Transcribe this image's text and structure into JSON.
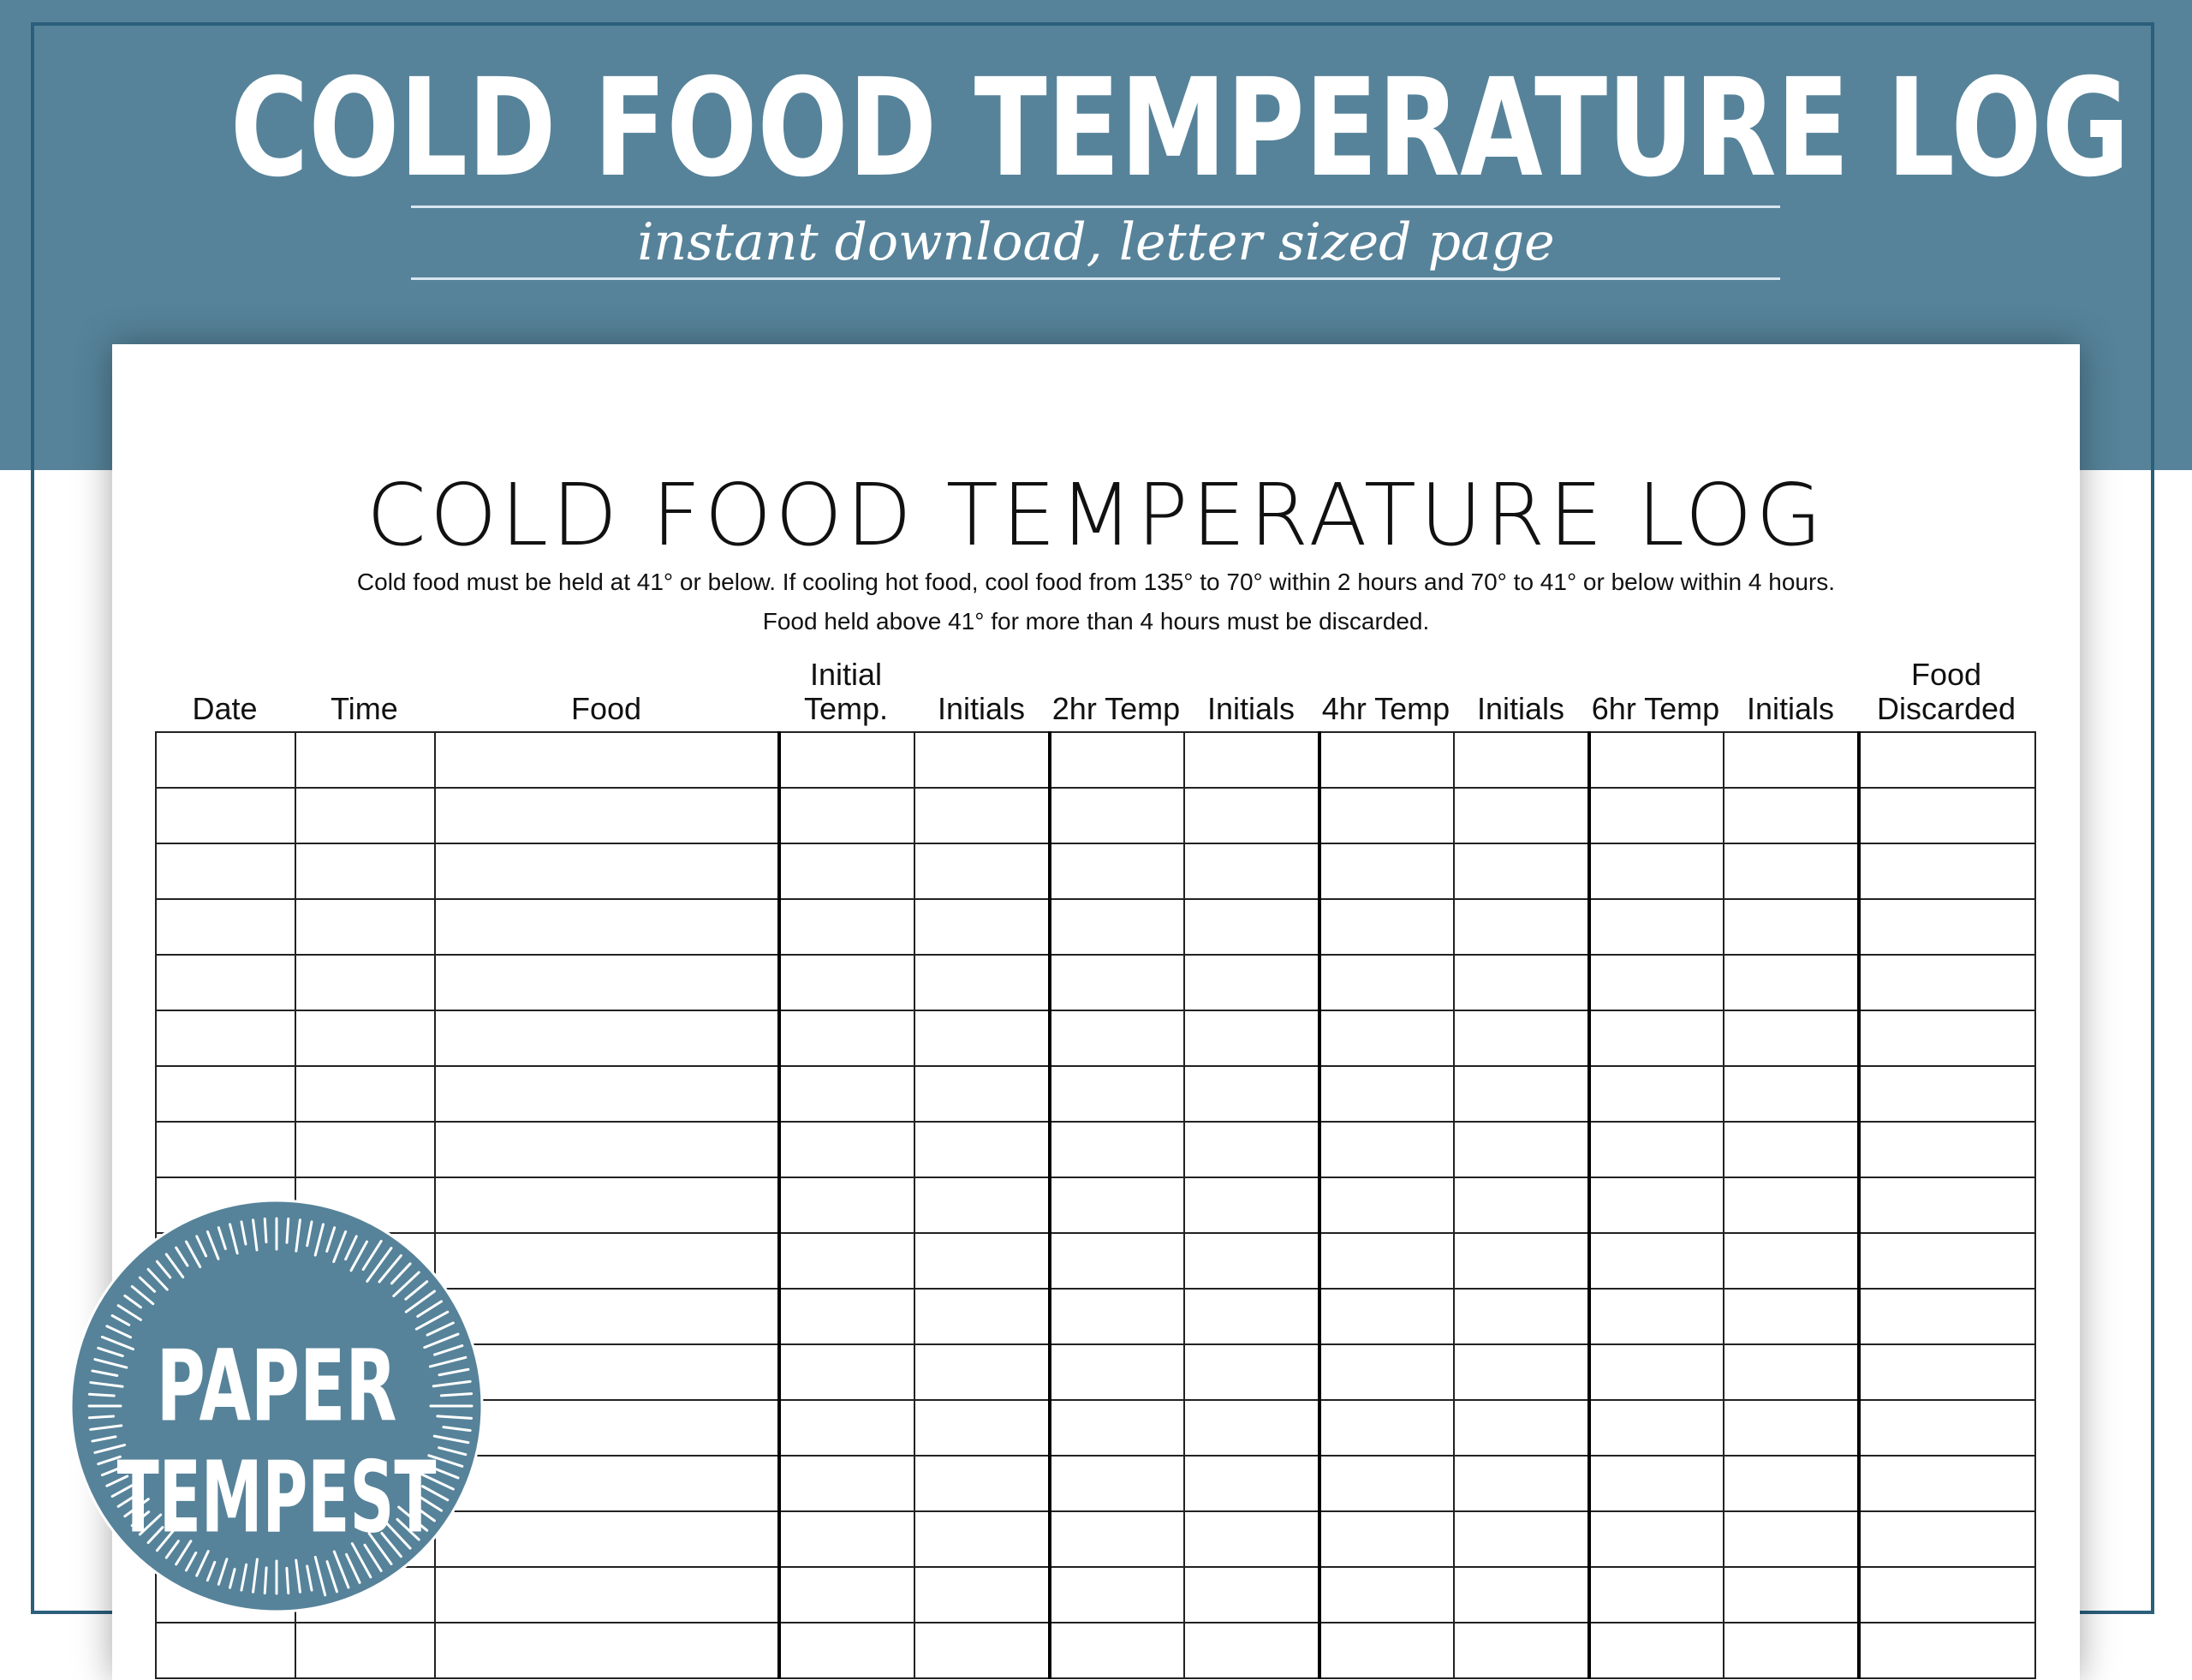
{
  "banner": {
    "title": "COLD FOOD TEMPERATURE LOG",
    "subtitle": "instant download, letter sized page"
  },
  "document": {
    "title": "COLD FOOD TEMPERATURE LOG",
    "instructions_line1": "Cold food must be held at 41° or below. If cooling hot food, cool food from 135° to 70° within 2 hours and 70° to 41° or below within 4 hours.",
    "instructions_line2": "Food held above 41° for more than 4 hours must be discarded.",
    "columns": [
      "Date",
      "Time",
      "Food",
      "Initial Temp.",
      "Initials",
      "2hr Temp",
      "Initials",
      "4hr Temp",
      "Initials",
      "6hr Temp",
      "Initials",
      "Food Discarded"
    ]
  },
  "badge": {
    "line1": "PAPER",
    "line2": "TEMPEST"
  },
  "colors": {
    "brand_blue": "#56839a",
    "frame": "#2b5f7b"
  }
}
